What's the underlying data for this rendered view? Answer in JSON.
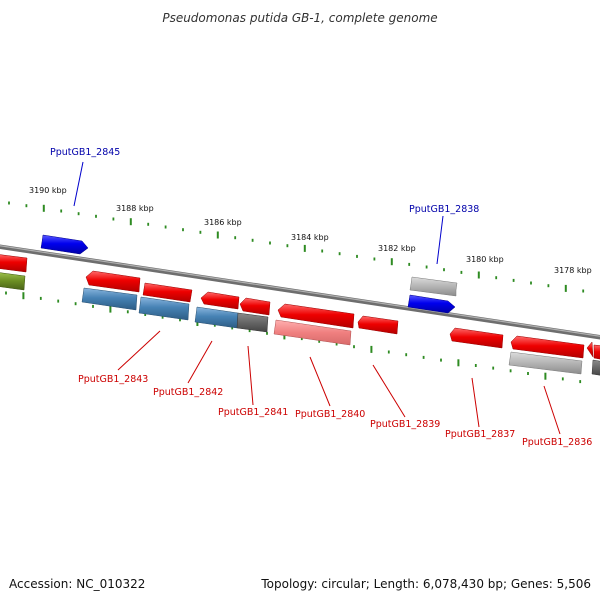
{
  "title": "Pseudomonas putida GB-1, complete genome",
  "footer": {
    "accession": "Accession: NC_010322",
    "topology": "Topology: circular; Length: 6,078,430 bp; Genes: 5,506"
  },
  "scale_labels": [
    "3190 kbp",
    "3188 kbp",
    "3186 kbp",
    "3184 kbp",
    "3182 kbp",
    "3180 kbp",
    "3178 kbp"
  ],
  "gene_labels_top": [
    "PputGB1_2845",
    "PputGB1_2838"
  ],
  "gene_labels_bottom": [
    "PputGB1_2843",
    "PputGB1_2842",
    "PputGB1_2841",
    "PputGB1_2840",
    "PputGB1_2839",
    "PputGB1_2837",
    "PputGB1_2836"
  ],
  "colors": {
    "backbone": "#808080",
    "tick": "#2e8b22",
    "cds_red": "#ee0000",
    "cds_blue": "#0000ee",
    "cds_steelblue": "#4682b4",
    "cds_gray": "#a9a9a9",
    "cds_olive": "#6b8e23",
    "label_blue": "#0000aa",
    "label_red": "#cc0000"
  }
}
